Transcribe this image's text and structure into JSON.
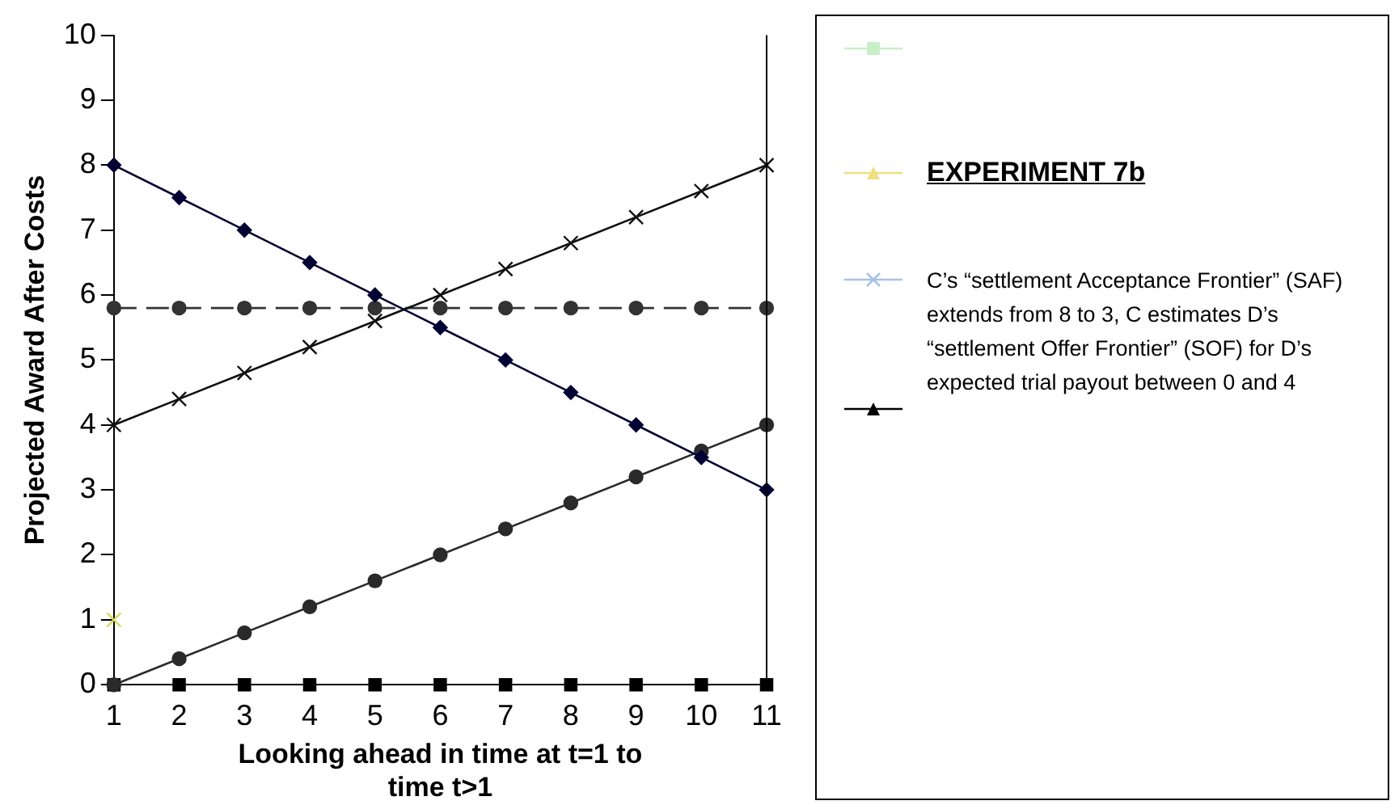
{
  "chart_data": {
    "type": "line",
    "xlabel": "Looking ahead in time at t=1 to time t>1",
    "ylabel": "Projected Award After Costs",
    "legend_title": "EXPERIMENT 7b",
    "annotations": [
      "C’s “settlement Acceptance Frontier” (SAF) extends from 8 to 3, C estimates D’s “settlement Offer Frontier” (SOF) for D’s expected trial payout between 0 and 4"
    ],
    "categories": [
      "1",
      "2",
      "3",
      "4",
      "5",
      "6",
      "7",
      "8",
      "9",
      "10",
      "11"
    ],
    "ylim": [
      0,
      10
    ],
    "yticks": [
      0,
      1,
      2,
      3,
      4,
      5,
      6,
      7,
      8,
      9,
      10
    ],
    "grid": false,
    "legend": false,
    "series": [
      {
        "color": "#000033",
        "marker": "diamond",
        "values": [
          8,
          7.5,
          7,
          6.5,
          6,
          5.5,
          5,
          4.5,
          4,
          3.5,
          3
        ]
      },
      {
        "color": "#111111",
        "marker": "cross",
        "values": [
          4,
          4.4,
          4.8,
          5.2,
          5.6,
          6,
          6.4,
          6.8,
          7.2,
          7.6,
          8
        ]
      },
      {
        "color": "#333333",
        "marker": "circle",
        "line_style": "dashed",
        "values": [
          5.8,
          5.8,
          5.8,
          5.8,
          5.8,
          5.8,
          5.8,
          5.8,
          5.8,
          5.8,
          5.8
        ]
      },
      {
        "color": "#2a2a2a",
        "marker": "circle",
        "values": [
          0,
          0.4,
          0.8,
          1.2,
          1.6,
          2,
          2.4,
          2.8,
          3.2,
          3.6,
          4
        ]
      },
      {
        "type": "scatter",
        "color": "#000000",
        "marker": "square",
        "x": [
          "1",
          "2",
          "3",
          "4",
          "5",
          "6",
          "7",
          "8",
          "9",
          "10",
          "11"
        ],
        "values": [
          0,
          0,
          0,
          0,
          0,
          0,
          0,
          0,
          0,
          0,
          0
        ]
      },
      {
        "type": "scatter",
        "color": "#d8d860",
        "marker": "cross",
        "x": [
          "1"
        ],
        "values": [
          1
        ]
      }
    ]
  }
}
